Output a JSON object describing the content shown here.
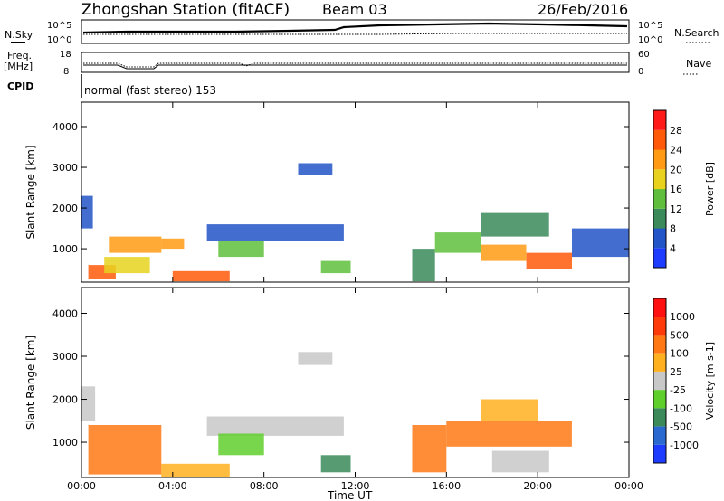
{
  "header": {
    "title": "Zhongshan Station (fitACF)",
    "beam": "Beam 03",
    "date": "26/Feb/2016"
  },
  "params": {
    "nsky_label": "N.Sky",
    "nsearch_label": "N.Search",
    "noise_ticks": [
      "10^5",
      "10^0"
    ],
    "freq_label": "Freq.",
    "freq_unit": "[MHz]",
    "freq_ticks": [
      "18",
      "8"
    ],
    "nave_label": "Nave",
    "nave_ticks": [
      "60",
      "0"
    ],
    "cpid_label": "CPID",
    "cpid_text": "normal (fast stereo) 153"
  },
  "chart_data": [
    {
      "type": "heatmap",
      "name": "power-panel",
      "ylabel": "Slant Range [km]",
      "yticks": [
        1000,
        2000,
        3000,
        4000
      ],
      "ylim": [
        180,
        4600
      ],
      "xlim_hours": [
        0,
        24
      ],
      "colorbar": {
        "label": "Power [dB]",
        "ticks": [
          "4",
          "8",
          "12",
          "16",
          "20",
          "24",
          "28"
        ],
        "colors": [
          "#1e3cff",
          "#2255c8",
          "#3a8a5a",
          "#5fbf3c",
          "#e8d21e",
          "#ff9a14",
          "#ff5a0a",
          "#ff1a1a"
        ]
      },
      "regions": [
        {
          "t0": 0.0,
          "t1": 0.5,
          "r0": 1500,
          "r1": 2300,
          "c": 1
        },
        {
          "t0": 0.3,
          "t1": 1.5,
          "r0": 250,
          "r1": 600,
          "c": 6
        },
        {
          "t0": 1.0,
          "t1": 3.0,
          "r0": 400,
          "r1": 800,
          "c": 4
        },
        {
          "t0": 1.2,
          "t1": 3.5,
          "r0": 900,
          "r1": 1300,
          "c": 5
        },
        {
          "t0": 3.5,
          "t1": 4.5,
          "r0": 1000,
          "r1": 1250,
          "c": 5
        },
        {
          "t0": 4.0,
          "t1": 6.5,
          "r0": 200,
          "r1": 450,
          "c": 6
        },
        {
          "t0": 5.5,
          "t1": 11.5,
          "r0": 1200,
          "r1": 1600,
          "c": 1
        },
        {
          "t0": 6.0,
          "t1": 8.0,
          "r0": 800,
          "r1": 1200,
          "c": 3
        },
        {
          "t0": 9.5,
          "t1": 11.0,
          "r0": 2800,
          "r1": 3100,
          "c": 1
        },
        {
          "t0": 10.5,
          "t1": 11.8,
          "r0": 400,
          "r1": 700,
          "c": 3
        },
        {
          "t0": 14.5,
          "t1": 15.5,
          "r0": 200,
          "r1": 1000,
          "c": 2
        },
        {
          "t0": 15.5,
          "t1": 17.5,
          "r0": 900,
          "r1": 1400,
          "c": 3
        },
        {
          "t0": 17.5,
          "t1": 20.5,
          "r0": 1300,
          "r1": 1900,
          "c": 2
        },
        {
          "t0": 17.5,
          "t1": 19.5,
          "r0": 700,
          "r1": 1100,
          "c": 5
        },
        {
          "t0": 19.5,
          "t1": 21.5,
          "r0": 500,
          "r1": 900,
          "c": 6
        },
        {
          "t0": 21.5,
          "t1": 24.0,
          "r0": 800,
          "r1": 1500,
          "c": 1
        }
      ]
    },
    {
      "type": "heatmap",
      "name": "velocity-panel",
      "ylabel": "Slant Range [km]",
      "yticks": [
        1000,
        2000,
        3000,
        4000
      ],
      "ylim": [
        180,
        4600
      ],
      "xlim_hours": [
        0,
        24
      ],
      "xticks": [
        "00:00",
        "04:00",
        "08:00",
        "12:00",
        "16:00",
        "20:00",
        "00:00"
      ],
      "xlabel": "Time UT",
      "colorbar": {
        "label": "Velocity [m s-1]",
        "ticks": [
          "1000",
          "500",
          "100",
          "25",
          "-25",
          "-100",
          "-500",
          "-1000"
        ],
        "colors": [
          "#1e3cff",
          "#2a6ad0",
          "#3a8a5a",
          "#5fcf2c",
          "#c8c8c8",
          "#ffb01e",
          "#ff7814",
          "#ff3a0a",
          "#ff1010"
        ]
      },
      "regions": [
        {
          "t0": 0.0,
          "t1": 0.6,
          "r0": 1500,
          "r1": 2300,
          "c": 4
        },
        {
          "t0": 0.3,
          "t1": 3.5,
          "r0": 250,
          "r1": 1400,
          "c": 6
        },
        {
          "t0": 3.5,
          "t1": 6.5,
          "r0": 200,
          "r1": 500,
          "c": 5
        },
        {
          "t0": 5.5,
          "t1": 11.5,
          "r0": 1150,
          "r1": 1600,
          "c": 4
        },
        {
          "t0": 6.0,
          "t1": 8.0,
          "r0": 700,
          "r1": 1200,
          "c": 3
        },
        {
          "t0": 9.5,
          "t1": 11.0,
          "r0": 2800,
          "r1": 3100,
          "c": 4
        },
        {
          "t0": 10.5,
          "t1": 11.8,
          "r0": 300,
          "r1": 700,
          "c": 2
        },
        {
          "t0": 14.5,
          "t1": 16.0,
          "r0": 300,
          "r1": 1400,
          "c": 6
        },
        {
          "t0": 16.0,
          "t1": 21.5,
          "r0": 900,
          "r1": 1500,
          "c": 6
        },
        {
          "t0": 18.0,
          "t1": 20.5,
          "r0": 300,
          "r1": 800,
          "c": 4
        },
        {
          "t0": 17.5,
          "t1": 20.0,
          "r0": 1500,
          "r1": 2000,
          "c": 5
        }
      ]
    }
  ]
}
